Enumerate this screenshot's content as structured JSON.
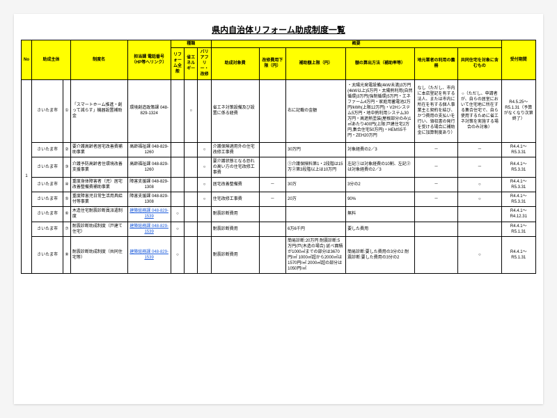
{
  "title": "県内自治体リフォーム助成制度一覧",
  "headers": {
    "no": "No",
    "body": "助成主体",
    "system": "制度名",
    "dept": "担当課\n電話番号\n（HP等へリンク）",
    "type_group": "種類",
    "overview_group": "概要",
    "t1": "リフォーム全般",
    "t2": "省エネルギー",
    "t3": "バリアフリー・改修",
    "target": "助成対象費",
    "lower": "改修費用下限（円）",
    "upper": "補助額上限（円）",
    "method": "額の算出方法（補助率等）",
    "local": "地元業者の利用の義務",
    "shared": "共同住宅を対象に含むもの",
    "period": "受付期間"
  },
  "rows": [
    {
      "no": "1",
      "body": "さいたま市",
      "idx": "①",
      "system": "「スマートホーム推進・創って減らす」機器設置補助金",
      "dept": "環境創造政策課\n048-829-1324",
      "t1": "",
      "t2": "○",
      "t3": "",
      "target": "省エネ対策設備及び設置に係る経費",
      "lower": "",
      "upper": "右に記載の金額",
      "method": "・太陽光発電設備(4kW未満)3万円(4kW以上)5万円・太陽熱利用(自然循環)3万円(強制循環)5万円・エネファーム4万円・家庭用蓄電池2万円/kWh(上限12万円)・V2Hシステム5万円・地中熱利用システム30万円・高遮熱塗装(屋根部分のみ)1㎡あたり400円(上限:戸建住宅2万円,集合住宅50万円)・HEMS5千円・ZEH20万円",
      "local": "なし（ただし、市内に本店登記を有する法人、または市内に所在を有する個人事業主と契約を結び、かつ費用の支払いを行い、領収書の発行を受ける場合に補助金に加算制度あり）",
      "shared": "○（ただし、申請者が、自らの居室において住宅地に所在する集合住宅で、自ら使用するために省エネ対策を実施する場合のみ対象）",
      "period": "R4.5.25〜R5.1.31（予算がなくなり次第終了）"
    },
    {
      "body": "さいたま市",
      "idx": "②",
      "system": "要介護高齢者居宅改善費補助事業",
      "dept": "高齢福祉課\n048-829-1260",
      "t1": "",
      "t2": "",
      "t3": "○",
      "target": "介護保険適用外の住宅改修工事費",
      "lower": "",
      "upper": "30万円",
      "method": "対象経費の2／3",
      "local": "－",
      "shared": "－",
      "period": "R4.4.1〜R5.3.31"
    },
    {
      "body": "さいたま市",
      "idx": "③",
      "system": "介護予防高齢者住環境改善支援事業",
      "dept": "高齢福祉課\n048-829-1260",
      "t1": "",
      "t2": "",
      "t3": "○",
      "target": "要介護状態となる恐れの高い方の住宅改修工事費",
      "lower": "",
      "upper": "①介護保険料第1・2段階は15万②第3段階以上は10万円",
      "method": "左記①は対象経費の10割、左記②は対象経費の2／3",
      "local": "－",
      "shared": "－",
      "period": "R4.4.1〜R5.3.31"
    },
    {
      "body": "さいたま市",
      "idx": "④",
      "system": "重度身体障害者（児）居宅改善整備費補助事業",
      "dept": "障害支援課\n048-829-1308",
      "t1": "",
      "t2": "",
      "t3": "○",
      "target": "居宅改善整備費",
      "lower": "－",
      "upper": "30万",
      "method": "3分の2",
      "local": "－",
      "shared": "○",
      "period": "R4.4.1〜R5.3.31"
    },
    {
      "body": "さいたま市",
      "idx": "⑤",
      "system": "重度障害児日常生活用具給付等事業",
      "dept": "障害支援課\n048-829-1308",
      "t1": "",
      "t2": "",
      "t3": "○",
      "target": "住宅改修工事費",
      "lower": "－",
      "upper": "20万",
      "method": "90%",
      "local": "－",
      "shared": "○",
      "period": "R4.4.1〜R5.3.31"
    },
    {
      "body": "さいたま市",
      "idx": "⑥",
      "system": "木造住宅耐震診断員派遣制度",
      "dept_link": "建築総務課\n048-829-1539",
      "t1": "○",
      "t2": "",
      "t3": "",
      "target": "耐震診断費用",
      "lower": "",
      "upper": "",
      "method": "無料",
      "local": "",
      "shared": "",
      "period": "R4.4.1〜R4.12.31"
    },
    {
      "body": "さいたま市",
      "idx": "⑦",
      "system": "耐震診断助成制度（戸建て住宅）",
      "dept_link": "建築総務課\n048-829-1539",
      "t1": "○",
      "t2": "",
      "t3": "",
      "target": "耐震診断費用",
      "lower": "",
      "upper": "6万6千円",
      "method": "要した費用",
      "local": "",
      "shared": "",
      "period": "R4.4.1〜R5.1.31"
    },
    {
      "body": "さいたま市",
      "idx": "⑧",
      "system": "耐震診断助成制度（共同住宅等）",
      "dept_link": "建築総務課\n048-829-1539",
      "t1": "○",
      "t2": "",
      "t3": "",
      "target": "耐震診断費用",
      "lower": "",
      "upper": "簡易診断:20万円 耐震診断:5万円/戸(木造の場合) 延べ面積が1000㎡までの部分は3670円/㎡ 1000㎡超から2000㎡は1570円/㎡ 2000㎡超の部分は1050円/㎡",
      "method": "簡易診断:要した費用の3分の2 耐震診断:要した費用の3分の2",
      "local": "",
      "shared": "○",
      "period": "R4.4.1〜R5.1.31"
    }
  ]
}
